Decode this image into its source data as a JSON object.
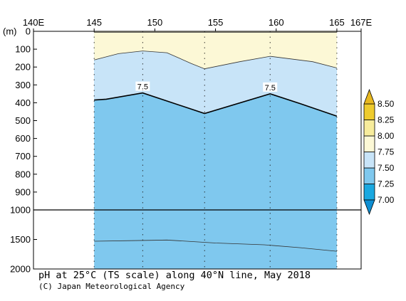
{
  "caption": "pH at 25°C (TS scale) along 40°N line, May 2018",
  "credit": "(C) Japan Meteorological Agency",
  "chart_data": {
    "type": "section-contour",
    "x_axis": {
      "ticks": [
        140,
        145,
        150,
        155,
        160,
        165,
        167
      ],
      "tick_labels": [
        "140E",
        "145",
        "150",
        "155",
        "160",
        "165",
        "167E"
      ],
      "range": [
        140,
        167
      ]
    },
    "y_axis": {
      "unit_label": "(m)",
      "upper_ticks": [
        0,
        100,
        200,
        300,
        400,
        500,
        600,
        700,
        800,
        900,
        1000
      ],
      "upper_tick_labels": [
        "0",
        "100",
        "200",
        "300",
        "400",
        "500",
        "600",
        "700",
        "800",
        "900",
        "1000"
      ],
      "lower_ticks": [
        1500,
        2000
      ],
      "lower_tick_labels": [
        "1500",
        "2000"
      ],
      "range": [
        0,
        2000
      ],
      "scale_break_at": 1000
    },
    "station_lons": [
      145,
      149,
      154.1,
      159.5,
      165
    ],
    "colorbar": {
      "levels": [
        7.0,
        7.25,
        7.5,
        7.75,
        8.0,
        8.25,
        8.5
      ],
      "labels": [
        "7.00",
        "7.25",
        "7.50",
        "7.75",
        "8.00",
        "8.25",
        "8.50"
      ],
      "colors": [
        "#1aa8e0",
        "#7fc8ee",
        "#c8e4f8",
        "#fcf8d6",
        "#f7ec9c",
        "#eecb2e"
      ],
      "low_cap_color": "#0e8ed2",
      "high_cap_color": "#e8b820"
    },
    "fill_regions": [
      {
        "range": "7.25-7.50",
        "color": "#7fc8ee"
      },
      {
        "range": "7.50-7.75",
        "color": "#c8e4f8"
      },
      {
        "range": "7.75-8.00",
        "color": "#fcf8d6"
      }
    ],
    "contours": {
      "c800": [
        [
          145,
          5
        ],
        [
          150,
          5
        ],
        [
          153,
          5
        ],
        [
          155.5,
          5
        ],
        [
          164,
          5
        ],
        [
          165,
          5
        ]
      ],
      "c775": [
        [
          145,
          160
        ],
        [
          147,
          125
        ],
        [
          149,
          110
        ],
        [
          151,
          120
        ],
        [
          153,
          180
        ],
        [
          154.1,
          210
        ],
        [
          157,
          170
        ],
        [
          159.5,
          140
        ],
        [
          163,
          170
        ],
        [
          165,
          205
        ]
      ],
      "c750": [
        [
          145,
          385
        ],
        [
          146,
          380
        ],
        [
          149,
          345
        ],
        [
          154.1,
          460
        ],
        [
          159.5,
          350
        ],
        [
          162,
          405
        ],
        [
          165,
          475
        ]
      ],
      "c725_upper": [
        [
          145,
          1530
        ],
        [
          148,
          1520
        ],
        [
          151,
          1510
        ],
        [
          155,
          1560
        ],
        [
          159,
          1590
        ],
        [
          162,
          1640
        ],
        [
          165,
          1700
        ]
      ],
      "labels": [
        {
          "text": "7.5",
          "lon": 149,
          "depth": 345
        },
        {
          "text": "7.5",
          "lon": 159.5,
          "depth": 350
        }
      ]
    },
    "shaded_lon_range": [
      145,
      165
    ]
  }
}
